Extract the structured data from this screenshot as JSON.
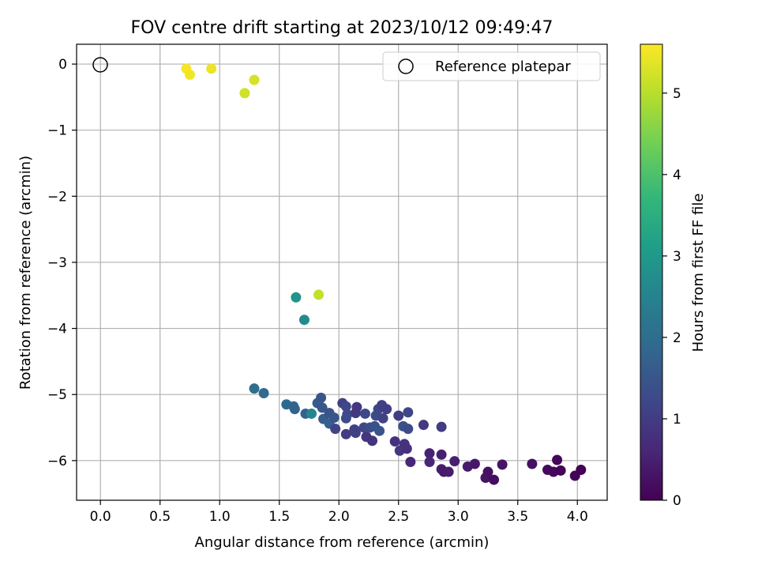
{
  "chart_data": {
    "type": "scatter",
    "title": "FOV centre drift starting at 2023/10/12 09:49:47",
    "xlabel": "Angular distance from reference (arcmin)",
    "ylabel": "Rotation from reference (arcmin)",
    "xlim": [
      -0.2,
      4.25
    ],
    "ylim": [
      -6.6,
      0.3
    ],
    "x_ticks": [
      0.0,
      0.5,
      1.0,
      1.5,
      2.0,
      2.5,
      3.0,
      3.5,
      4.0
    ],
    "x_tick_labels": [
      "0.0",
      "0.5",
      "1.0",
      "1.5",
      "2.0",
      "2.5",
      "3.0",
      "3.5",
      "4.0"
    ],
    "y_ticks": [
      0,
      -1,
      -2,
      -3,
      -4,
      -5,
      -6
    ],
    "y_tick_labels": [
      "0",
      "−1",
      "−2",
      "−3",
      "−4",
      "−5",
      "−6"
    ],
    "grid": true,
    "legend": {
      "placement": "top-right",
      "entries": [
        {
          "label": "Reference platepar",
          "marker": "hollow-circle"
        }
      ]
    },
    "reference_point": {
      "x": 0.0,
      "y": 0.0
    },
    "colorbar": {
      "label": "Hours from first FF file",
      "colormap": "viridis",
      "range": [
        0,
        5.6
      ],
      "ticks": [
        0,
        1,
        2,
        3,
        4,
        5
      ],
      "tick_labels": [
        "0",
        "1",
        "2",
        "3",
        "4",
        "5"
      ],
      "stops": [
        "#440154",
        "#482878",
        "#3e4989",
        "#31688e",
        "#26828e",
        "#1f9e89",
        "#35b779",
        "#6ece58",
        "#b5de2b",
        "#fde725"
      ]
    },
    "series": [
      {
        "points": [
          {
            "x": 0.72,
            "y": -0.07,
            "c": 5.55
          },
          {
            "x": 0.75,
            "y": -0.16,
            "c": 5.5
          },
          {
            "x": 0.93,
            "y": -0.07,
            "c": 5.45
          },
          {
            "x": 1.21,
            "y": -0.44,
            "c": 5.2
          },
          {
            "x": 1.29,
            "y": -0.24,
            "c": 5.25
          },
          {
            "x": 1.83,
            "y": -3.49,
            "c": 5.1
          },
          {
            "x": 1.64,
            "y": -3.53,
            "c": 2.9
          },
          {
            "x": 1.71,
            "y": -3.87,
            "c": 2.65
          },
          {
            "x": 1.29,
            "y": -4.91,
            "c": 2.0
          },
          {
            "x": 1.37,
            "y": -4.98,
            "c": 1.95
          },
          {
            "x": 1.56,
            "y": -5.15,
            "c": 1.9
          },
          {
            "x": 1.62,
            "y": -5.18,
            "c": 1.85
          },
          {
            "x": 1.63,
            "y": -5.22,
            "c": 1.8
          },
          {
            "x": 1.72,
            "y": -5.29,
            "c": 1.75
          },
          {
            "x": 1.77,
            "y": -5.29,
            "c": 2.55
          },
          {
            "x": 1.82,
            "y": -5.13,
            "c": 1.6
          },
          {
            "x": 1.85,
            "y": -5.05,
            "c": 1.5
          },
          {
            "x": 1.86,
            "y": -5.2,
            "c": 1.55
          },
          {
            "x": 1.87,
            "y": -5.37,
            "c": 1.65
          },
          {
            "x": 1.92,
            "y": -5.44,
            "c": 1.7
          },
          {
            "x": 1.92,
            "y": -5.28,
            "c": 1.45
          },
          {
            "x": 1.96,
            "y": -5.35,
            "c": 1.5
          },
          {
            "x": 1.97,
            "y": -5.52,
            "c": 1.15
          },
          {
            "x": 2.03,
            "y": -5.13,
            "c": 1.1
          },
          {
            "x": 2.06,
            "y": -5.18,
            "c": 1.2
          },
          {
            "x": 2.07,
            "y": -5.3,
            "c": 1.25
          },
          {
            "x": 2.06,
            "y": -5.36,
            "c": 1.3
          },
          {
            "x": 2.06,
            "y": -5.6,
            "c": 1.0
          },
          {
            "x": 2.13,
            "y": -5.53,
            "c": 1.05
          },
          {
            "x": 2.14,
            "y": -5.28,
            "c": 0.95
          },
          {
            "x": 2.15,
            "y": -5.19,
            "c": 0.9
          },
          {
            "x": 2.14,
            "y": -5.58,
            "c": 1.1
          },
          {
            "x": 2.21,
            "y": -5.5,
            "c": 1.2
          },
          {
            "x": 2.22,
            "y": -5.29,
            "c": 1.25
          },
          {
            "x": 2.23,
            "y": -5.64,
            "c": 0.9
          },
          {
            "x": 2.26,
            "y": -5.5,
            "c": 1.35
          },
          {
            "x": 2.28,
            "y": -5.7,
            "c": 0.85
          },
          {
            "x": 2.3,
            "y": -5.48,
            "c": 1.4
          },
          {
            "x": 2.31,
            "y": -5.32,
            "c": 1.3
          },
          {
            "x": 2.33,
            "y": -5.22,
            "c": 1.2
          },
          {
            "x": 2.34,
            "y": -5.55,
            "c": 1.45
          },
          {
            "x": 2.36,
            "y": -5.16,
            "c": 1.1
          },
          {
            "x": 2.37,
            "y": -5.36,
            "c": 1.15
          },
          {
            "x": 2.4,
            "y": -5.22,
            "c": 1.05
          },
          {
            "x": 2.47,
            "y": -5.71,
            "c": 0.8
          },
          {
            "x": 2.5,
            "y": -5.32,
            "c": 1.0
          },
          {
            "x": 2.51,
            "y": -5.85,
            "c": 0.9
          },
          {
            "x": 2.54,
            "y": -5.48,
            "c": 1.4
          },
          {
            "x": 2.55,
            "y": -5.75,
            "c": 0.85
          },
          {
            "x": 2.57,
            "y": -5.82,
            "c": 0.8
          },
          {
            "x": 2.58,
            "y": -5.27,
            "c": 1.2
          },
          {
            "x": 2.58,
            "y": -5.52,
            "c": 1.3
          },
          {
            "x": 2.6,
            "y": -6.02,
            "c": 0.6
          },
          {
            "x": 2.71,
            "y": -5.46,
            "c": 0.95
          },
          {
            "x": 2.76,
            "y": -5.89,
            "c": 0.55
          },
          {
            "x": 2.76,
            "y": -6.02,
            "c": 0.6
          },
          {
            "x": 2.86,
            "y": -5.49,
            "c": 1.0
          },
          {
            "x": 2.86,
            "y": -5.91,
            "c": 0.5
          },
          {
            "x": 2.86,
            "y": -6.13,
            "c": 0.45
          },
          {
            "x": 2.88,
            "y": -6.17,
            "c": 0.4
          },
          {
            "x": 2.92,
            "y": -6.17,
            "c": 0.45
          },
          {
            "x": 2.97,
            "y": -6.01,
            "c": 0.5
          },
          {
            "x": 3.08,
            "y": -6.09,
            "c": 0.4
          },
          {
            "x": 3.14,
            "y": -6.05,
            "c": 0.35
          },
          {
            "x": 3.23,
            "y": -6.26,
            "c": 0.3
          },
          {
            "x": 3.25,
            "y": -6.17,
            "c": 0.25
          },
          {
            "x": 3.3,
            "y": -6.29,
            "c": 0.2
          },
          {
            "x": 3.37,
            "y": -6.06,
            "c": 0.3
          },
          {
            "x": 3.62,
            "y": -6.05,
            "c": 0.25
          },
          {
            "x": 3.75,
            "y": -6.14,
            "c": 0.15
          },
          {
            "x": 3.8,
            "y": -6.17,
            "c": 0.1
          },
          {
            "x": 3.83,
            "y": -5.99,
            "c": 0.1
          },
          {
            "x": 3.86,
            "y": -6.15,
            "c": 0.05
          },
          {
            "x": 3.98,
            "y": -6.23,
            "c": 0.05
          },
          {
            "x": 4.03,
            "y": -6.14,
            "c": 0.0
          }
        ]
      }
    ]
  }
}
